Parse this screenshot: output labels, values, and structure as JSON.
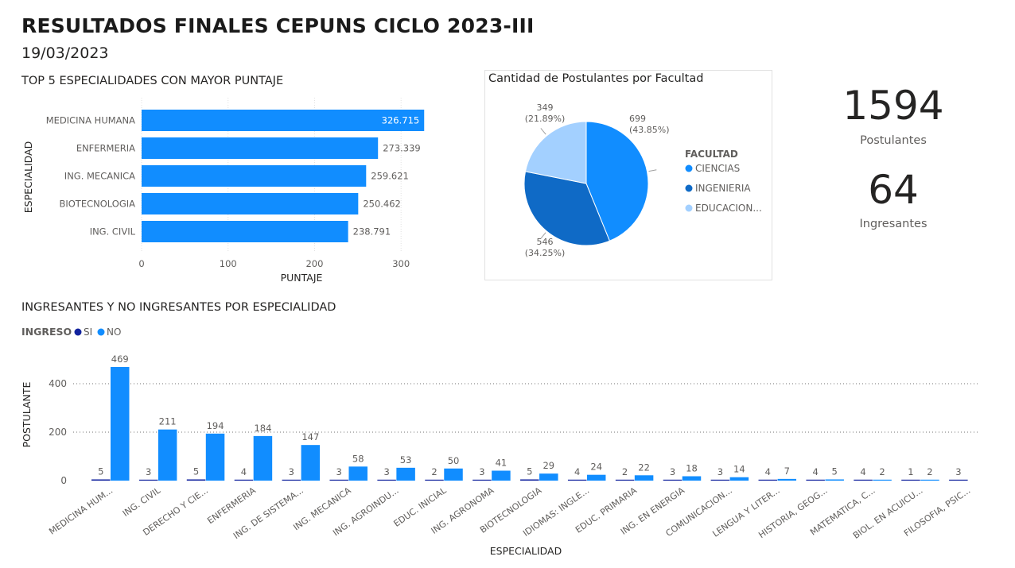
{
  "header": {
    "title": "RESULTADOS FINALES CEPUNS CICLO 2023-III",
    "date": "19/03/2023"
  },
  "kpis": {
    "postulantes": {
      "value": "1594",
      "label": "Postulantes"
    },
    "ingresantes": {
      "value": "64",
      "label": "Ingresantes"
    }
  },
  "colors": {
    "bar": "#118dff",
    "ingresa_si": "#12239e",
    "ingresa_no": "#118dff",
    "pie_ciencias": "#118dff",
    "pie_ingenieria": "#0f6ac6",
    "pie_educacion": "#a3d0ff"
  },
  "chart_data": [
    {
      "type": "bar",
      "orientation": "horizontal",
      "title": "TOP 5 ESPECIALIDADES CON MAYOR PUNTAJE",
      "xlabel": "PUNTAJE",
      "ylabel": "ESPECIALIDAD",
      "categories": [
        "MEDICINA HUMANA",
        "ENFERMERIA",
        "ING. MECANICA",
        "BIOTECNOLOGIA",
        "ING. CIVIL"
      ],
      "values": [
        326.715,
        273.339,
        259.621,
        250.462,
        238.791
      ],
      "value_labels": [
        "326.715",
        "273.339",
        "259.621",
        "250.462",
        "238.791"
      ],
      "xlim": [
        0,
        330
      ],
      "xticks": [
        0,
        100,
        200,
        300
      ],
      "grid": true
    },
    {
      "type": "pie",
      "title": "Cantidad de Postulantes por Facultad",
      "legend_title": "FACULTAD",
      "legend_position": "right",
      "slices": [
        {
          "name": "CIENCIAS",
          "legend_label": "CIENCIAS",
          "value": 699,
          "percent": "(43.85%)"
        },
        {
          "name": "INGENIERIA",
          "legend_label": "INGENIERIA",
          "value": 546,
          "percent": "(34.25%)"
        },
        {
          "name": "EDUCACION",
          "legend_label": "EDUCACION...",
          "value": 349,
          "percent": "(21.89%)"
        }
      ]
    },
    {
      "type": "bar",
      "orientation": "vertical",
      "title": "INGRESANTES Y NO INGRESANTES POR ESPECIALIDAD",
      "legend_title": "INGRESO",
      "legend_position": "top-left",
      "xlabel": "ESPECIALIDAD",
      "ylabel": "POSTULANTE",
      "ylim": [
        0,
        500
      ],
      "yticks": [
        0,
        200,
        400
      ],
      "grid": true,
      "categories": [
        "MEDICINA HUM...",
        "ING. CIVIL",
        "DERECHO Y CIE...",
        "ENFERMERIA",
        "ING. DE SISTEMA...",
        "ING. MECANICA",
        "ING. AGROINDU...",
        "EDUC. INICIAL",
        "ING. AGRONOMA",
        "BIOTECNOLOGIA",
        "IDIOMAS: INGLE...",
        "EDUC. PRIMARIA",
        "ING. EN ENERGIA",
        "COMUNICACION...",
        "LENGUA Y LITER...",
        "HISTORIA, GEOG...",
        "MATEMATICA, C...",
        "BIOL. EN ACUICU...",
        "FILOSOFIA, PSIC..."
      ],
      "series": [
        {
          "name": "SI",
          "values": [
            5,
            3,
            5,
            4,
            3,
            3,
            3,
            2,
            3,
            5,
            4,
            2,
            3,
            3,
            4,
            4,
            4,
            1,
            3
          ]
        },
        {
          "name": "NO",
          "values": [
            469,
            211,
            194,
            184,
            147,
            58,
            53,
            50,
            41,
            29,
            24,
            22,
            18,
            14,
            7,
            5,
            2,
            2,
            null
          ]
        }
      ]
    }
  ]
}
